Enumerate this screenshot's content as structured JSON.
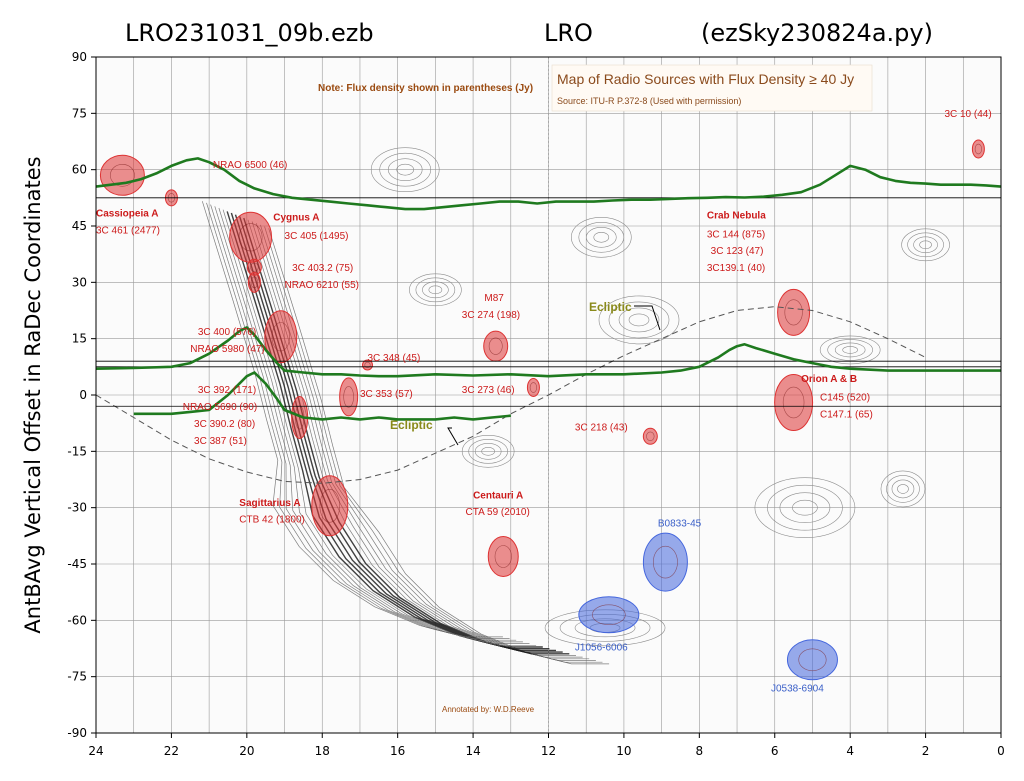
{
  "header": {
    "left": "LRO231031_09b.ezb",
    "center": "LRO",
    "right": "(ezSky230824a.py)"
  },
  "colors": {
    "trace": "#1f7a1f",
    "source_red": "#dd3333",
    "source_blue": "#4466dd",
    "label_red": "#cc1a1a",
    "label_blue": "#3a5fc8",
    "note_brown": "#9a4a10"
  },
  "chart_data": {
    "type": "line",
    "ylabel": "AntBAvg Vertical Offset in RaDec Coordinates",
    "xlabel": "",
    "xlim": [
      24,
      0
    ],
    "ylim": [
      -90,
      90
    ],
    "x_ticks": [
      "24",
      "22",
      "20",
      "18",
      "16",
      "14",
      "12",
      "10",
      "8",
      "6",
      "4",
      "2",
      "0"
    ],
    "y_ticks": [
      "90",
      "75",
      "60",
      "45",
      "30",
      "15",
      "0",
      "-15",
      "-30",
      "-45",
      "-60",
      "-75",
      "-90"
    ],
    "baselines_dec": [
      52.5,
      9,
      7.5,
      -3
    ],
    "series": [
      {
        "x": [
          24,
          23.6,
          23.2,
          22.8,
          22.4,
          22.0,
          21.6,
          21.3,
          21.0,
          20.6,
          20.2,
          19.8,
          19.3,
          18.8,
          18.3,
          17.8,
          17.3,
          16.8,
          16.3,
          15.8,
          15.3,
          14.8,
          14.3,
          13.8,
          13.3,
          12.8,
          12.3,
          11.8,
          11.3,
          10.8,
          10.3,
          9.8,
          9.3,
          8.8,
          8.3,
          7.8,
          7.3,
          6.8,
          6.3,
          5.8,
          5.3,
          4.8,
          4.4,
          4.0,
          3.6,
          3.2,
          2.8,
          2.4,
          2.0,
          1.6,
          1.2,
          0.8,
          0.4,
          0
        ],
        "y": [
          55.5,
          56.0,
          56.5,
          57.5,
          59.0,
          61.0,
          62.5,
          63.0,
          62.0,
          60.0,
          57.0,
          55.0,
          53.5,
          52.5,
          52.0,
          51.5,
          51.0,
          50.5,
          50.0,
          49.5,
          49.5,
          50.0,
          50.5,
          51.0,
          51.5,
          51.5,
          51.0,
          51.5,
          51.5,
          51.5,
          51.8,
          52.0,
          52.0,
          52.2,
          52.4,
          52.5,
          52.7,
          52.6,
          52.8,
          53.3,
          54.0,
          56.0,
          58.5,
          61.0,
          60.0,
          58.0,
          57.0,
          56.5,
          56.3,
          56.0,
          56.0,
          56.0,
          55.8,
          55.5
        ]
      },
      {
        "x": [
          24,
          23.0,
          22.0,
          21.5,
          21.0,
          20.5,
          20.2,
          20.0,
          19.8,
          19.5,
          19.2,
          19.0,
          18.5,
          18.0,
          17.5,
          17.0,
          16.5,
          16.0,
          15.0,
          14.0,
          13.0,
          12.0,
          11.0,
          10.0,
          9.0,
          8.5,
          8.0,
          7.5,
          7.2,
          7.0,
          6.8,
          6.5,
          6.0,
          5.5,
          5.0,
          4.5,
          4.0,
          3.0,
          2.0,
          1.0,
          0
        ],
        "y": [
          7.0,
          7.2,
          7.5,
          8.5,
          11.0,
          14.5,
          17.0,
          18.0,
          16.0,
          12.0,
          8.5,
          6.5,
          6.0,
          5.5,
          5.5,
          5.2,
          5.0,
          5.0,
          5.5,
          5.2,
          5.5,
          5.0,
          5.5,
          5.5,
          6.0,
          6.5,
          7.5,
          10.0,
          12.0,
          13.0,
          13.5,
          12.5,
          11.0,
          9.5,
          8.5,
          7.5,
          7.0,
          6.5,
          6.5,
          6.5,
          6.5
        ]
      },
      {
        "x": [
          23.0,
          22.5,
          22.0,
          21.5,
          21.0,
          20.5,
          20.2,
          20.0,
          19.8,
          19.5,
          19.2,
          19.0,
          18.5,
          18.0,
          17.5,
          17.0,
          16.5,
          16.0,
          15.5,
          15.0,
          14.5,
          14.0,
          13.5,
          13.0
        ],
        "y": [
          -5.0,
          -5.0,
          -5.0,
          -4.5,
          -4.0,
          0.0,
          3.0,
          5.0,
          6.0,
          3.0,
          -1.0,
          -4.0,
          -6.0,
          -6.5,
          -6.0,
          -6.5,
          -6.0,
          -6.5,
          -6.5,
          -6.5,
          -6.0,
          -6.5,
          -6.0,
          -5.5
        ]
      }
    ],
    "ecliptic": {
      "x": [
        24,
        23,
        22,
        21,
        20,
        19,
        18,
        17,
        16,
        15,
        14,
        13,
        12,
        11,
        10,
        9,
        8,
        7,
        6,
        5,
        4,
        3,
        2
      ],
      "y": [
        0,
        -6,
        -12,
        -17,
        -20.5,
        -23,
        -23.5,
        -22.5,
        -20,
        -15.5,
        -11,
        -5,
        0,
        5.5,
        10.5,
        15,
        19.5,
        22.5,
        23.5,
        22.5,
        19.5,
        15,
        10
      ]
    }
  },
  "map_overlay": {
    "title": "Map of Radio Sources with Flux Density ≥ 40 Jy",
    "source_line": "Source: ITU-R P.372-8 (Used with permission)",
    "note": "Note: Flux density shown in parentheses (Jy)",
    "annotated_by": "Annotated by: W.D.Reeve",
    "ecliptic_label": "Ecliptic",
    "labels": [
      {
        "text": "Cassiopeia A",
        "ra": 24.0,
        "dec": 47.5,
        "bold": true
      },
      {
        "text": "3C 461 (2477)",
        "ra": 24.0,
        "dec": 43.0,
        "bold": false
      },
      {
        "text": "NRAO 6500 (46)",
        "ra": 20.9,
        "dec": 60.5,
        "bold": false
      },
      {
        "text": "Cygnus A",
        "ra": 19.3,
        "dec": 46.5,
        "bold": true
      },
      {
        "text": "3C 405 (1495)",
        "ra": 19.0,
        "dec": 41.5,
        "bold": false
      },
      {
        "text": "3C 403.2 (75)",
        "ra": 18.8,
        "dec": 33.0,
        "bold": false
      },
      {
        "text": "NRAO 6210 (55)",
        "ra": 19.0,
        "dec": 28.5,
        "bold": false
      },
      {
        "text": "3C 400 (576)",
        "ra": 21.3,
        "dec": 16.0,
        "bold": false
      },
      {
        "text": "NRAO 5980 (47)",
        "ra": 21.5,
        "dec": 11.5,
        "bold": false
      },
      {
        "text": "3C 348 (45)",
        "ra": 16.8,
        "dec": 9.0,
        "bold": false
      },
      {
        "text": "3C 392 (171)",
        "ra": 21.3,
        "dec": 0.5,
        "bold": false
      },
      {
        "text": "NRAO 5690 (90)",
        "ra": 21.7,
        "dec": -4.0,
        "bold": false
      },
      {
        "text": "3C 390.2 (80)",
        "ra": 21.4,
        "dec": -8.5,
        "bold": false
      },
      {
        "text": "3C 387 (51)",
        "ra": 21.4,
        "dec": -13.0,
        "bold": false
      },
      {
        "text": "3C 353 (57)",
        "ra": 17.0,
        "dec": -0.5,
        "bold": false
      },
      {
        "text": "3C 273 (46)",
        "ra": 14.3,
        "dec": 0.5,
        "bold": false
      },
      {
        "text": "M87",
        "ra": 13.7,
        "dec": 25.0,
        "bold": false
      },
      {
        "text": "3C 274 (198)",
        "ra": 14.3,
        "dec": 20.5,
        "bold": false
      },
      {
        "text": "Sagittarius A",
        "ra": 20.2,
        "dec": -29.5,
        "bold": true
      },
      {
        "text": "CTB 42 (1800)",
        "ra": 20.2,
        "dec": -34.0,
        "bold": false
      },
      {
        "text": "Centauri A",
        "ra": 14.0,
        "dec": -27.5,
        "bold": true
      },
      {
        "text": "CTA 59 (2010)",
        "ra": 14.2,
        "dec": -32.0,
        "bold": false
      },
      {
        "text": "3C 218 (43)",
        "ra": 11.3,
        "dec": -9.5,
        "bold": false
      },
      {
        "text": "Crab Nebula",
        "ra": 7.8,
        "dec": 47.0,
        "bold": true
      },
      {
        "text": "3C 144 (875)",
        "ra": 7.8,
        "dec": 42.0,
        "bold": false
      },
      {
        "text": "3C 123 (47)",
        "ra": 7.7,
        "dec": 37.5,
        "bold": false
      },
      {
        "text": "3C139.1 (40)",
        "ra": 7.8,
        "dec": 33.0,
        "bold": false
      },
      {
        "text": "Orion A & B",
        "ra": 5.3,
        "dec": 3.5,
        "bold": true
      },
      {
        "text": "C145 (520)",
        "ra": 4.8,
        "dec": -1.5,
        "bold": false
      },
      {
        "text": "C147.1 (65)",
        "ra": 4.8,
        "dec": -6.0,
        "bold": false
      },
      {
        "text": "3C 10 (44)",
        "ra": 1.5,
        "dec": 74.0,
        "bold": false
      }
    ],
    "blue_labels": [
      {
        "text": "B0833-45",
        "ra": 9.1,
        "dec": -35.0
      },
      {
        "text": "J1056-6006",
        "ra": 11.3,
        "dec": -68.0
      },
      {
        "text": "J0538-6904",
        "ra": 6.1,
        "dec": -79.0
      }
    ]
  }
}
